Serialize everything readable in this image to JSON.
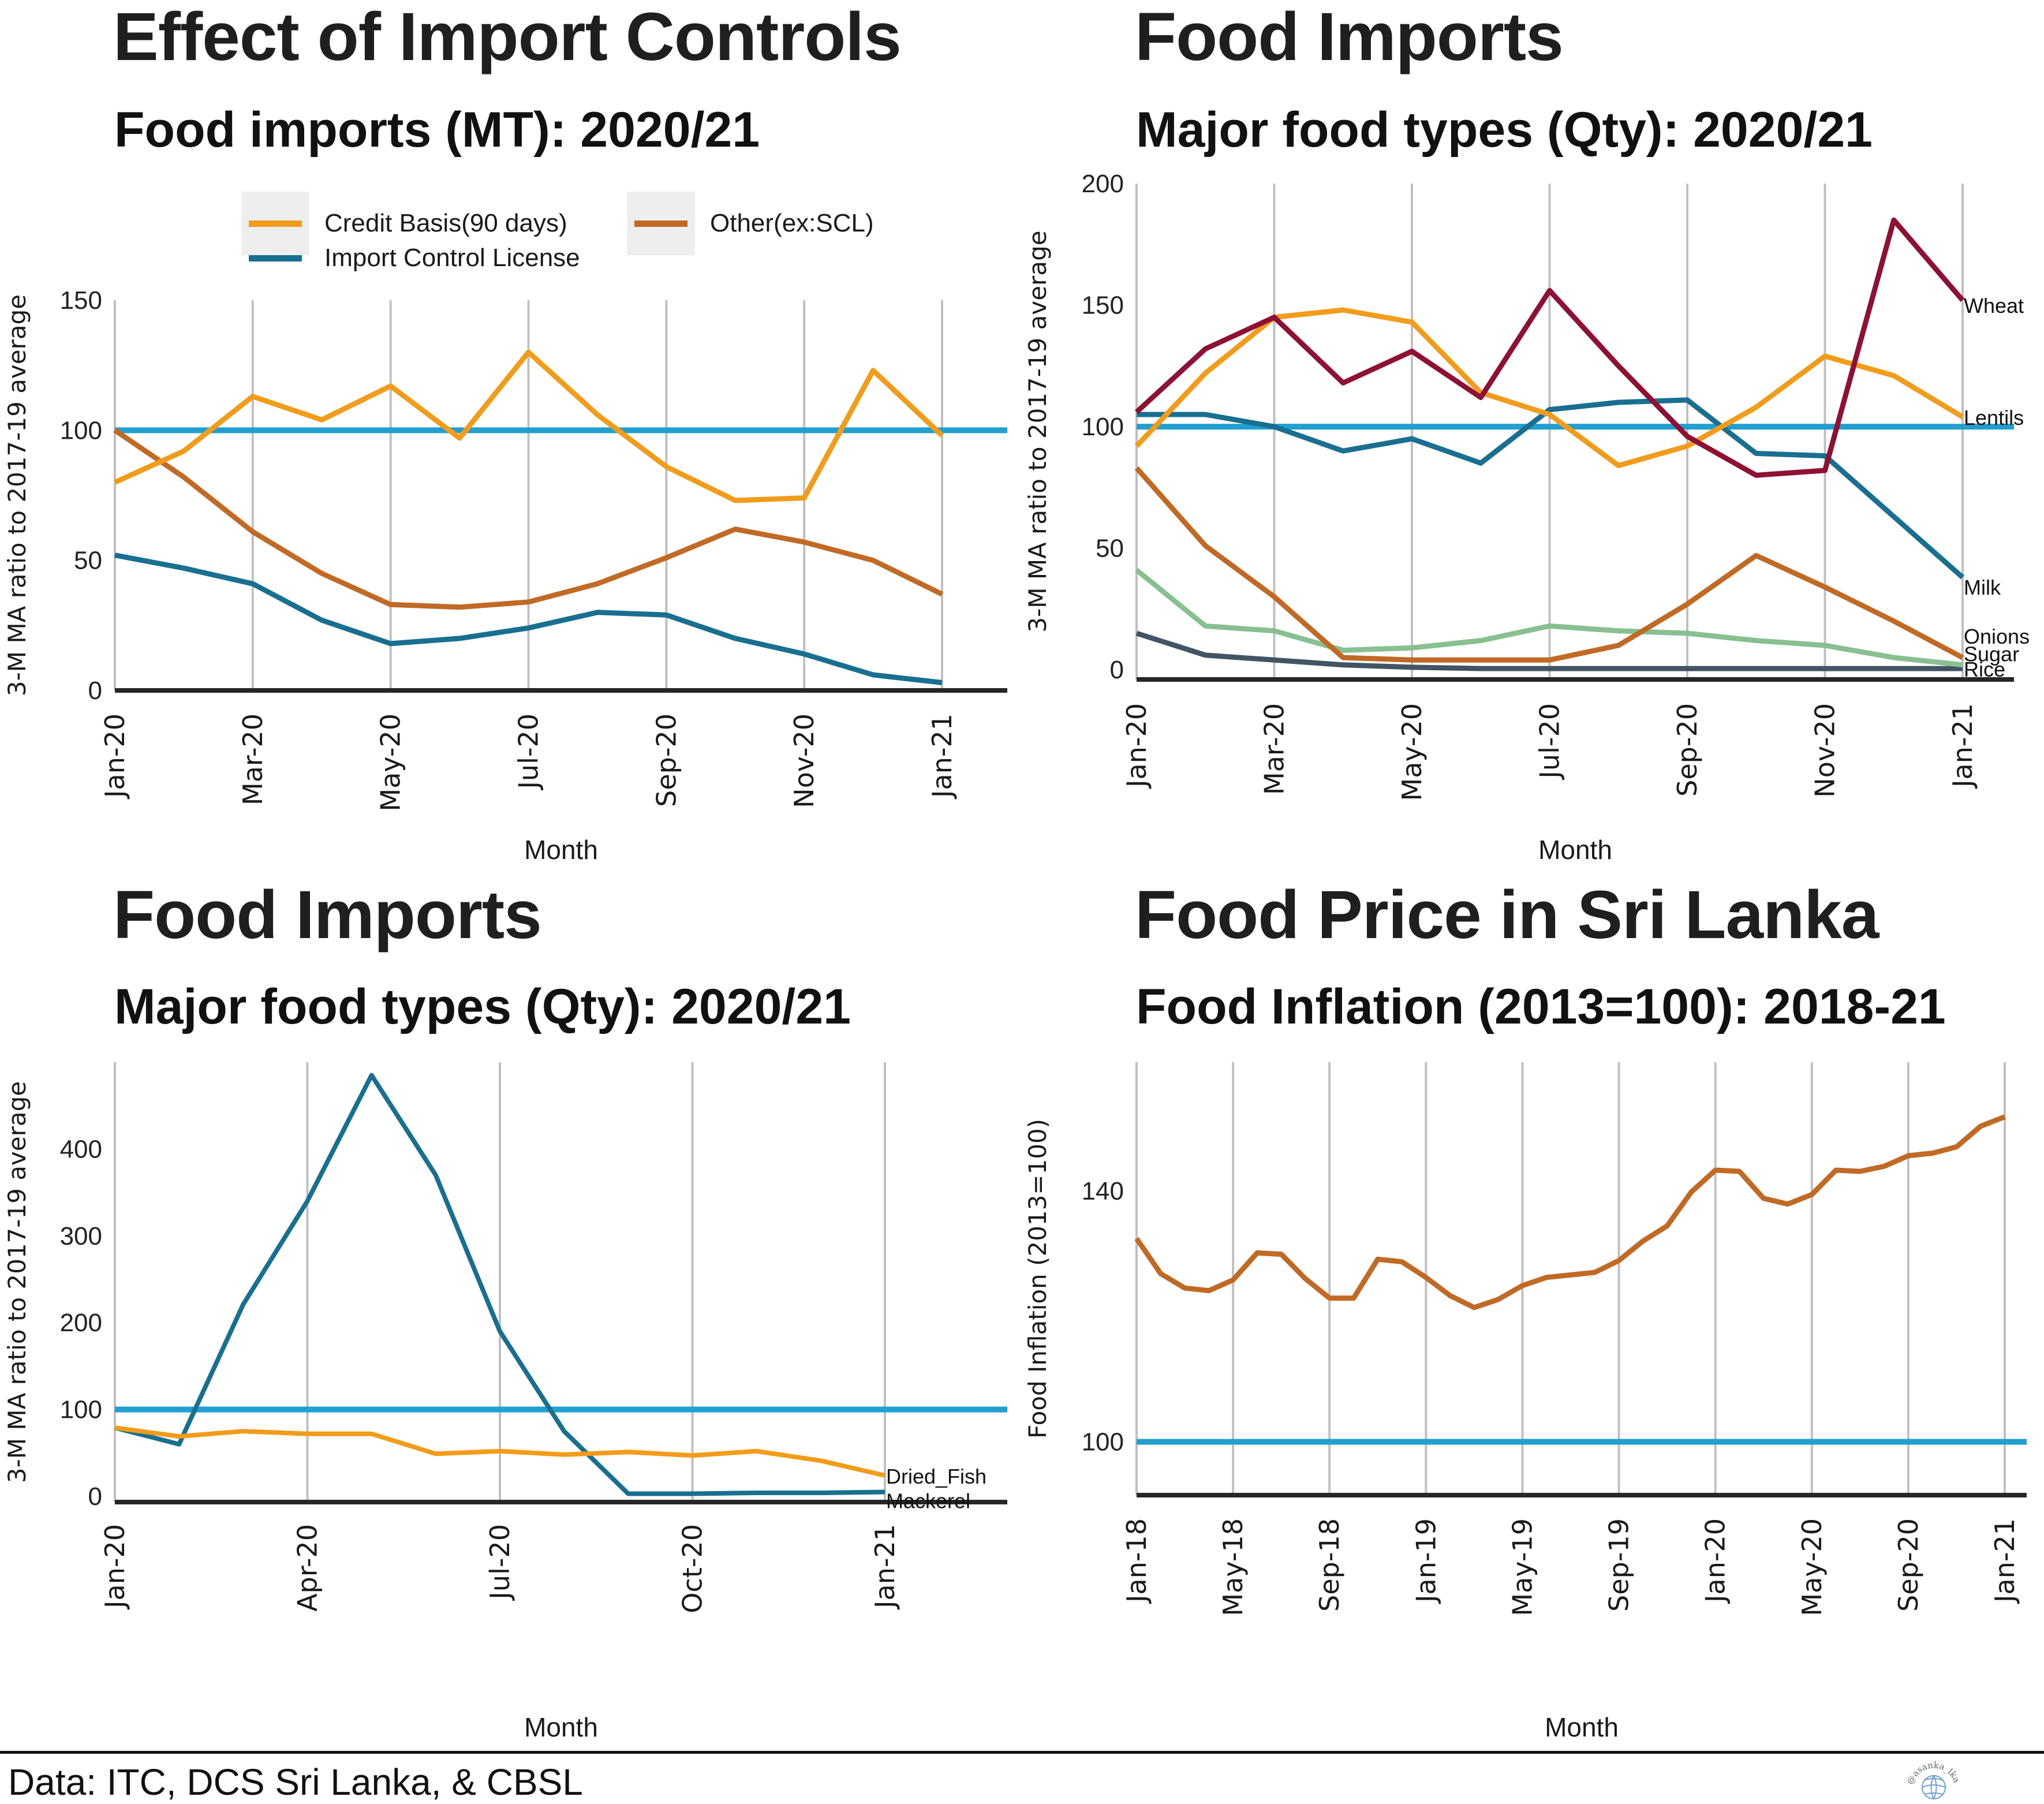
{
  "footer": {
    "source": "Data: ITC, DCS Sri Lanka, & CBSL",
    "watermark": "@asanka_lka"
  },
  "colors": {
    "reference_line": "#229ecf",
    "axis": "#262626",
    "grid": "#c0c0c0"
  },
  "chart_data": [
    {
      "id": "import-controls",
      "type": "line",
      "title": "Effect of Import Controls",
      "subtitle": "Food imports (MT): 2020/21",
      "xlabel": "Month",
      "ylabel": "3-M MA ratio to 2017-19 average",
      "x": [
        "Jan-20",
        "Feb-20",
        "Mar-20",
        "Apr-20",
        "May-20",
        "Jun-20",
        "Jul-20",
        "Aug-20",
        "Sep-20",
        "Oct-20",
        "Nov-20",
        "Dec-20",
        "Jan-21"
      ],
      "x_tick_labels": [
        "Jan-20",
        "Mar-20",
        "May-20",
        "Jul-20",
        "Sep-20",
        "Nov-20",
        "Jan-21"
      ],
      "ylim": [
        0,
        150
      ],
      "y_ticks": [
        0,
        50,
        100,
        150
      ],
      "grid": "vertical",
      "reference_line": 100,
      "legend": "top",
      "series": [
        {
          "name": "Credit Basis(90 days)",
          "color": "#f29c1c",
          "values": [
            80,
            92,
            113,
            104,
            117,
            97,
            130,
            106,
            86,
            73,
            74,
            123,
            98
          ]
        },
        {
          "name": "Import Control License",
          "color": "#196f8f",
          "values": [
            52,
            47,
            41,
            27,
            18,
            20,
            24,
            30,
            29,
            20,
            14,
            6,
            3
          ]
        },
        {
          "name": "Other(ex:SCL)",
          "color": "#c06a26",
          "values": [
            100,
            82,
            61,
            45,
            33,
            32,
            34,
            41,
            51,
            62,
            57,
            50,
            37
          ]
        }
      ]
    },
    {
      "id": "food-types-major",
      "type": "line",
      "title": "Food Imports",
      "subtitle": "Major food types (Qty): 2020/21",
      "xlabel": "Month",
      "ylabel": "3-M MA ratio to 2017-19 average",
      "x": [
        "Jan-20",
        "Feb-20",
        "Mar-20",
        "Apr-20",
        "May-20",
        "Jun-20",
        "Jul-20",
        "Aug-20",
        "Sep-20",
        "Oct-20",
        "Nov-20",
        "Dec-20",
        "Jan-21"
      ],
      "x_tick_labels": [
        "Jan-20",
        "Mar-20",
        "May-20",
        "Jul-20",
        "Sep-20",
        "Nov-20",
        "Jan-21"
      ],
      "ylim": [
        -4,
        200
      ],
      "y_ticks": [
        0,
        50,
        100,
        150,
        200
      ],
      "grid": "vertical",
      "reference_line": 100,
      "legend": "end-labels",
      "series": [
        {
          "name": "Wheat",
          "color": "#8e1033",
          "values": [
            106,
            132,
            145,
            118,
            131,
            112,
            156,
            125,
            96,
            80,
            82,
            185,
            152
          ]
        },
        {
          "name": "Lentils",
          "color": "#f29c1c",
          "values": [
            92,
            122,
            145,
            148,
            143,
            114,
            105,
            84,
            92,
            108,
            129,
            121,
            104
          ]
        },
        {
          "name": "Milk",
          "color": "#196f8f",
          "values": [
            105,
            105,
            100,
            90,
            95,
            85,
            107,
            110,
            111,
            89,
            88,
            63,
            38
          ]
        },
        {
          "name": "Onions",
          "color": "#c06a26",
          "values": [
            83,
            51,
            30,
            5,
            4,
            4,
            4,
            10,
            27,
            47,
            34,
            20,
            5
          ]
        },
        {
          "name": "Sugar",
          "color": "#88c092",
          "values": [
            41,
            18,
            16,
            8,
            9,
            12,
            18,
            16,
            15,
            12,
            10,
            5,
            2
          ]
        },
        {
          "name": "Rice",
          "color": "#435565",
          "values": [
            15,
            6,
            4,
            2,
            1,
            0.5,
            0.5,
            0.5,
            0.5,
            0.5,
            0.5,
            0.5,
            0.5
          ]
        }
      ]
    },
    {
      "id": "food-types-fish",
      "type": "line",
      "title": "Food Imports",
      "subtitle": "Major food types (Qty): 2020/21",
      "xlabel": "Month",
      "ylabel": "3-M MA ratio to 2017-19 average",
      "x": [
        "Jan-20",
        "Feb-20",
        "Mar-20",
        "Apr-20",
        "May-20",
        "Jun-20",
        "Jul-20",
        "Aug-20",
        "Sep-20",
        "Oct-20",
        "Nov-20",
        "Dec-20",
        "Jan-21"
      ],
      "x_tick_labels": [
        "Jan-20",
        "Apr-20",
        "Jul-20",
        "Oct-20",
        "Jan-21"
      ],
      "ylim": [
        0,
        500
      ],
      "y_ticks": [
        0,
        100,
        200,
        300,
        400
      ],
      "grid": "vertical",
      "reference_line": 100,
      "legend": "end-labels",
      "series": [
        {
          "name": "Dried_Fish",
          "color": "#f29c1c",
          "values": [
            79,
            69,
            75,
            72,
            72,
            49,
            52,
            48,
            51,
            47,
            52,
            41,
            24
          ]
        },
        {
          "name": "Mackerel",
          "color": "#196f8f",
          "values": [
            79,
            60,
            221,
            340,
            485,
            370,
            190,
            75,
            3,
            3,
            4,
            4,
            5
          ]
        }
      ]
    },
    {
      "id": "food-price",
      "type": "line",
      "title": "Food Price in Sri Lanka",
      "subtitle": "Food Inflation (2013=100): 2018-21",
      "xlabel": "Month",
      "ylabel": "Food Inflation (2013=100)",
      "x": [
        "Jan-18",
        "Feb-18",
        "Mar-18",
        "Apr-18",
        "May-18",
        "Jun-18",
        "Jul-18",
        "Aug-18",
        "Sep-18",
        "Oct-18",
        "Nov-18",
        "Dec-18",
        "Jan-19",
        "Feb-19",
        "Mar-19",
        "Apr-19",
        "May-19",
        "Jun-19",
        "Jul-19",
        "Aug-19",
        "Sep-19",
        "Oct-19",
        "Nov-19",
        "Dec-19",
        "Jan-20",
        "Feb-20",
        "Mar-20",
        "Apr-20",
        "May-20",
        "Jun-20",
        "Jul-20",
        "Aug-20",
        "Sep-20",
        "Oct-20",
        "Nov-20",
        "Dec-20",
        "Jan-21"
      ],
      "x_tick_labels": [
        "Jan-18",
        "May-18",
        "Sep-18",
        "Jan-19",
        "May-19",
        "Sep-19",
        "Jan-20",
        "May-20",
        "Sep-20",
        "Jan-21"
      ],
      "ylim": [
        91.5,
        160.5
      ],
      "y_ticks": [
        100,
        140
      ],
      "grid": "vertical",
      "reference_line": 100,
      "legend": "none",
      "series": [
        {
          "name": "Food Inflation",
          "color": "#c06a26",
          "values": [
            132.4,
            126.8,
            124.5,
            124.1,
            125.8,
            130.1,
            129.9,
            126.0,
            122.9,
            122.9,
            129.1,
            128.7,
            126.2,
            123.3,
            121.4,
            122.7,
            124.9,
            126.2,
            126.6,
            127.0,
            128.9,
            132.0,
            134.4,
            139.8,
            143.3,
            143.1,
            138.8,
            137.9,
            139.4,
            143.3,
            143.1,
            143.9,
            145.6,
            146.0,
            147.0,
            150.3,
            151.8
          ]
        }
      ]
    }
  ]
}
